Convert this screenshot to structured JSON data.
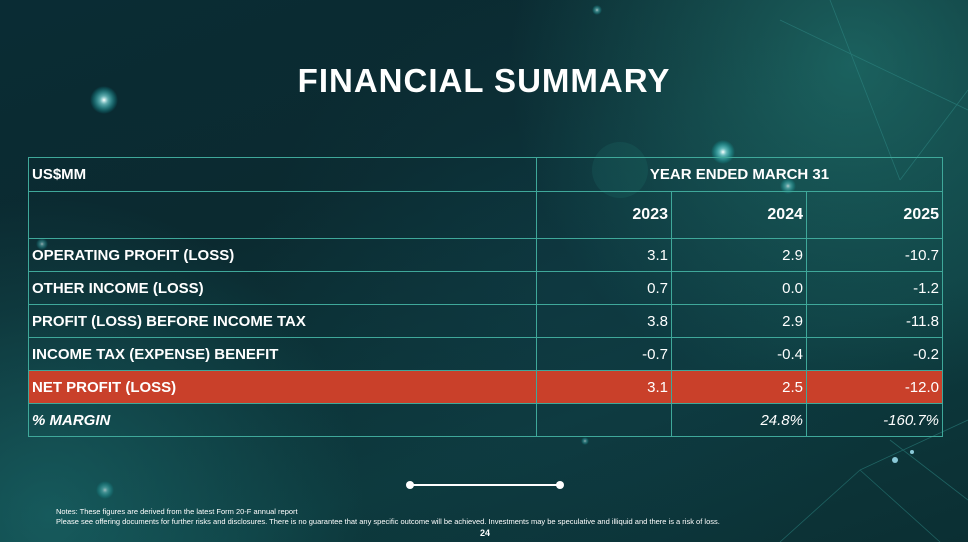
{
  "title": "FINANCIAL SUMMARY",
  "table": {
    "unit_label": "US$MM",
    "period_label": "YEAR ENDED MARCH 31",
    "years": [
      "2023",
      "2024",
      "2025"
    ],
    "rows": [
      {
        "label": "OPERATING PROFIT (LOSS)",
        "values": [
          "3.1",
          "2.9",
          "-10.7"
        ]
      },
      {
        "label": "OTHER INCOME (LOSS)",
        "values": [
          "0.7",
          "0.0",
          "-1.2"
        ]
      },
      {
        "label": "PROFIT (LOSS) BEFORE INCOME TAX",
        "values": [
          "3.8",
          "2.9",
          "-11.8"
        ]
      },
      {
        "label": "INCOME TAX (EXPENSE) BENEFIT",
        "values": [
          "-0.7",
          "-0.4",
          "-0.2"
        ]
      },
      {
        "label": "NET PROFIT (LOSS)",
        "values": [
          "3.1",
          "2.5",
          "-12.0"
        ]
      },
      {
        "label": "% MARGIN",
        "values": [
          "",
          "24.8%",
          "-160.7%"
        ]
      }
    ],
    "highlight_color": "#c9402a"
  },
  "notes": {
    "line1": "Notes: These figures are derived from the latest Form 20-F annual report",
    "line2": "Please see offering documents for further risks and disclosures. There is no guarantee that any specific outcome will be achieved. Investments may be speculative and illiquid and there is a risk of loss."
  },
  "page_number": "24"
}
